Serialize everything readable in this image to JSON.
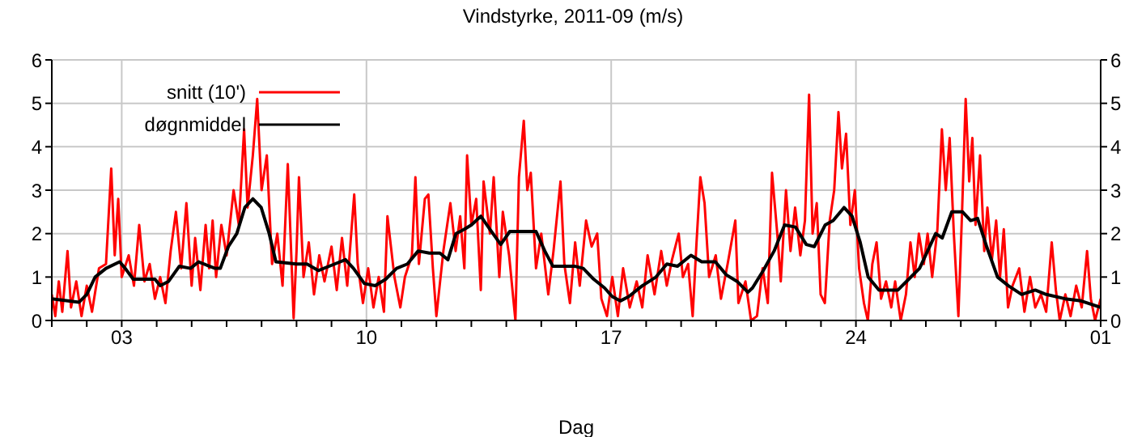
{
  "chart_data": {
    "type": "line",
    "title": "Vindstyrke, 2011-09 (m/s)",
    "xlabel": "Dag",
    "xlim": [
      "2011-09-01",
      "2011-10-01"
    ],
    "xticks": [
      {
        "value": "2011-09-01",
        "label": null
      },
      {
        "value": "2011-09-02",
        "label": null
      },
      {
        "value": "2011-09-03",
        "label": "03"
      },
      {
        "value": "2011-09-04",
        "label": null
      },
      {
        "value": "2011-09-05",
        "label": null
      },
      {
        "value": "2011-09-06",
        "label": null
      },
      {
        "value": "2011-09-07",
        "label": null
      },
      {
        "value": "2011-09-08",
        "label": null
      },
      {
        "value": "2011-09-09",
        "label": null
      },
      {
        "value": "2011-09-10",
        "label": "10"
      },
      {
        "value": "2011-09-11",
        "label": null
      },
      {
        "value": "2011-09-12",
        "label": null
      },
      {
        "value": "2011-09-13",
        "label": null
      },
      {
        "value": "2011-09-14",
        "label": null
      },
      {
        "value": "2011-09-15",
        "label": null
      },
      {
        "value": "2011-09-16",
        "label": null
      },
      {
        "value": "2011-09-17",
        "label": "17"
      },
      {
        "value": "2011-09-18",
        "label": null
      },
      {
        "value": "2011-09-19",
        "label": null
      },
      {
        "value": "2011-09-20",
        "label": null
      },
      {
        "value": "2011-09-21",
        "label": null
      },
      {
        "value": "2011-09-22",
        "label": null
      },
      {
        "value": "2011-09-23",
        "label": null
      },
      {
        "value": "2011-09-24",
        "label": "24"
      },
      {
        "value": "2011-09-25",
        "label": null
      },
      {
        "value": "2011-09-26",
        "label": null
      },
      {
        "value": "2011-09-27",
        "label": null
      },
      {
        "value": "2011-09-28",
        "label": null
      },
      {
        "value": "2011-09-29",
        "label": null
      },
      {
        "value": "2011-09-30",
        "label": null
      },
      {
        "value": "2011-10-01",
        "label": "01"
      }
    ],
    "ylim": [
      0,
      6
    ],
    "yticks": [
      0,
      1,
      2,
      3,
      4,
      5,
      6
    ],
    "y2lim": [
      0,
      6
    ],
    "y2ticks": [
      0,
      1,
      2,
      3,
      4,
      5,
      6
    ],
    "grid": true,
    "legend": "top left",
    "marker": "none",
    "line_style": "solid",
    "series": [
      {
        "name": "snitt (10')",
        "color": "#ff0000",
        "x": [
          "2011-09-01T00:00",
          "2011-09-01T02:24",
          "2011-09-01T04:48",
          "2011-09-01T07:12",
          "2011-09-01T10:48",
          "2011-09-01T13:12",
          "2011-09-01T16:48",
          "2011-09-01T20:24",
          "2011-09-02T00:00",
          "2011-09-02T03:36",
          "2011-09-02T08:24",
          "2011-09-02T13:12",
          "2011-09-02T16:48",
          "2011-09-02T19:12",
          "2011-09-02T21:36",
          "2011-09-03T00:00",
          "2011-09-03T04:48",
          "2011-09-03T08:24",
          "2011-09-03T12:00",
          "2011-09-03T15:36",
          "2011-09-03T19:12",
          "2011-09-03T22:48",
          "2011-09-04T02:24",
          "2011-09-04T06:00",
          "2011-09-04T09:36",
          "2011-09-04T13:12",
          "2011-09-04T16:48",
          "2011-09-04T20:24",
          "2011-09-05T00:00",
          "2011-09-05T02:24",
          "2011-09-05T06:00",
          "2011-09-05T09:36",
          "2011-09-05T12:00",
          "2011-09-05T14:24",
          "2011-09-05T16:48",
          "2011-09-05T20:24",
          "2011-09-06T00:00",
          "2011-09-06T04:48",
          "2011-09-06T08:24",
          "2011-09-06T12:00",
          "2011-09-06T14:24",
          "2011-09-06T18:00",
          "2011-09-06T21:00",
          "2011-09-07T00:00",
          "2011-09-07T03:36",
          "2011-09-07T07:12",
          "2011-09-07T10:48",
          "2011-09-07T14:24",
          "2011-09-07T18:00",
          "2011-09-07T20:24",
          "2011-09-07T22:00",
          "2011-09-08T00:00",
          "2011-09-08T01:40",
          "2011-09-08T04:48",
          "2011-09-08T08:24",
          "2011-09-08T12:00",
          "2011-09-08T15:36",
          "2011-09-08T19:12",
          "2011-09-09T00:00",
          "2011-09-09T03:36",
          "2011-09-09T07:12",
          "2011-09-09T10:48",
          "2011-09-09T15:36",
          "2011-09-09T18:00",
          "2011-09-09T21:36",
          "2011-09-10T01:12",
          "2011-09-10T04:48",
          "2011-09-10T08:24",
          "2011-09-10T12:00",
          "2011-09-10T14:24",
          "2011-09-10T19:12",
          "2011-09-10T23:15",
          "2011-09-11T02:24",
          "2011-09-11T07:12",
          "2011-09-11T09:36",
          "2011-09-11T12:00",
          "2011-09-11T16:05",
          "2011-09-11T18:30",
          "2011-09-11T21:36",
          "2011-09-12T00:00",
          "2011-09-12T04:48",
          "2011-09-12T09:36",
          "2011-09-12T13:12",
          "2011-09-12T16:20",
          "2011-09-12T19:12",
          "2011-09-12T21:05",
          "2011-09-13T00:00",
          "2011-09-13T03:20",
          "2011-09-13T06:30",
          "2011-09-13T08:24",
          "2011-09-13T12:45",
          "2011-09-13T15:20",
          "2011-09-13T19:12",
          "2011-09-13T21:36",
          "2011-09-14T01:55",
          "2011-09-14T06:15",
          "2011-09-14T08:40",
          "2011-09-14T12:00",
          "2011-09-14T14:24",
          "2011-09-14T16:48",
          "2011-09-14T20:24",
          "2011-09-15T00:00",
          "2011-09-15T04:48",
          "2011-09-15T08:24",
          "2011-09-15T13:12",
          "2011-09-15T15:50",
          "2011-09-15T19:40",
          "2011-09-15T23:15",
          "2011-09-16T02:24",
          "2011-09-16T06:45",
          "2011-09-16T10:35",
          "2011-09-16T14:24",
          "2011-09-16T17:15",
          "2011-09-16T21:05",
          "2011-09-17T00:45",
          "2011-09-17T04:35",
          "2011-09-17T08:10",
          "2011-09-17T12:45",
          "2011-09-17T17:30",
          "2011-09-17T21:20",
          "2011-09-18T01:00",
          "2011-09-18T05:45",
          "2011-09-18T10:20",
          "2011-09-18T14:10",
          "2011-09-18T17:45",
          "2011-09-18T22:20",
          "2011-09-19T01:12",
          "2011-09-19T04:48",
          "2011-09-19T07:55",
          "2011-09-19T10:35",
          "2011-09-19T13:12",
          "2011-09-19T16:05",
          "2011-09-19T19:12",
          "2011-09-19T23:45",
          "2011-09-20T03:20",
          "2011-09-20T07:55",
          "2011-09-20T13:12",
          "2011-09-20T15:20",
          "2011-09-20T20:10",
          "2011-09-21T00:00",
          "2011-09-21T04:05",
          "2011-09-21T07:55",
          "2011-09-21T11:30",
          "2011-09-21T14:24",
          "2011-09-21T18:00",
          "2011-09-21T20:24",
          "2011-09-22T00:00",
          "2011-09-22T03:05",
          "2011-09-22T06:15",
          "2011-09-22T09:50",
          "2011-09-22T13:00",
          "2011-09-22T15:50",
          "2011-09-22T18:15",
          "2011-09-22T21:05",
          "2011-09-22T23:45",
          "2011-09-23T02:40",
          "2011-09-23T06:00",
          "2011-09-23T09:05",
          "2011-09-23T12:00",
          "2011-09-23T14:24",
          "2011-09-23T17:15",
          "2011-09-23T20:10",
          "2011-09-23T23:15",
          "2011-09-24T02:10",
          "2011-09-24T05:30",
          "2011-09-24T08:10",
          "2011-09-24T11:15",
          "2011-09-24T14:10",
          "2011-09-24T17:15",
          "2011-09-24T20:40",
          "2011-09-25T00:15",
          "2011-09-25T02:55",
          "2011-09-25T06:45",
          "2011-09-25T10:20",
          "2011-09-25T13:25",
          "2011-09-25T16:20",
          "2011-09-25T19:12",
          "2011-09-25T22:35",
          "2011-09-26T01:12",
          "2011-09-26T04:20",
          "2011-09-26T07:55",
          "2011-09-26T11:00",
          "2011-09-26T13:40",
          "2011-09-26T16:20",
          "2011-09-26T19:12",
          "2011-09-26T22:20",
          "2011-09-27T00:45",
          "2011-09-27T03:20",
          "2011-09-27T05:45",
          "2011-09-27T07:55",
          "2011-09-27T10:05",
          "2011-09-27T13:12",
          "2011-09-27T16:05",
          "2011-09-27T18:15",
          "2011-09-27T21:20",
          "2011-09-28T00:15",
          "2011-09-28T02:55",
          "2011-09-28T05:30",
          "2011-09-28T08:24",
          "2011-09-28T11:30",
          "2011-09-28T16:05",
          "2011-09-28T19:40",
          "2011-09-28T23:30",
          "2011-09-29T03:05",
          "2011-09-29T07:00",
          "2011-09-29T10:35",
          "2011-09-29T14:24",
          "2011-09-29T17:15",
          "2011-09-29T19:55",
          "2011-09-29T23:45",
          "2011-09-30T03:20",
          "2011-09-30T07:12",
          "2011-09-30T11:00",
          "2011-09-30T14:40",
          "2011-09-30T17:15",
          "2011-09-30T20:10",
          "2011-10-01T00:00"
        ],
        "values": [
          0.6,
          0.1,
          0.9,
          0.2,
          1.6,
          0.3,
          0.9,
          0.1,
          0.8,
          0.2,
          1.2,
          1.3,
          3.5,
          1.5,
          2.8,
          1.0,
          1.5,
          0.8,
          2.2,
          0.9,
          1.3,
          0.5,
          1.0,
          0.4,
          1.6,
          2.5,
          1.2,
          2.7,
          0.8,
          1.9,
          0.7,
          2.2,
          1.2,
          2.3,
          1.0,
          2.2,
          1.5,
          3.0,
          2.2,
          4.4,
          2.6,
          3.8,
          5.1,
          3.0,
          3.8,
          1.3,
          2.0,
          0.8,
          3.6,
          1.5,
          0.05,
          1.6,
          3.3,
          1.0,
          1.8,
          0.6,
          1.5,
          0.9,
          1.7,
          0.7,
          1.9,
          0.8,
          2.9,
          1.3,
          0.4,
          1.2,
          0.3,
          1.0,
          0.2,
          2.4,
          1.0,
          0.3,
          1.0,
          1.5,
          3.3,
          1.3,
          2.8,
          2.9,
          1.2,
          0.1,
          1.6,
          2.7,
          1.6,
          2.4,
          1.2,
          3.8,
          2.2,
          2.8,
          0.7,
          3.2,
          2.0,
          3.3,
          1.0,
          2.5,
          1.5,
          0.0,
          3.3,
          4.6,
          3.0,
          3.4,
          1.2,
          2.0,
          0.6,
          1.6,
          3.2,
          1.3,
          0.4,
          1.8,
          0.8,
          2.3,
          1.7,
          2.0,
          0.5,
          0.1,
          1.0,
          0.1,
          1.2,
          0.3,
          0.9,
          0.3,
          1.5,
          0.6,
          1.6,
          0.8,
          1.4,
          2.0,
          1.0,
          1.3,
          0.1,
          1.8,
          3.3,
          2.7,
          1.0,
          1.5,
          0.5,
          1.3,
          2.3,
          0.4,
          0.9,
          0.0,
          0.1,
          1.2,
          0.4,
          3.4,
          2.0,
          0.9,
          3.0,
          1.6,
          2.6,
          1.5,
          2.3,
          5.2,
          2.0,
          2.7,
          0.6,
          0.4,
          2.3,
          3.0,
          4.8,
          3.5,
          4.3,
          2.2,
          3.0,
          1.2,
          0.4,
          0.0,
          1.3,
          1.8,
          0.5,
          0.9,
          0.3,
          0.9,
          0.0,
          0.6,
          1.8,
          1.0,
          2.0,
          1.3,
          2.0,
          1.0,
          2.1,
          4.4,
          3.0,
          4.2,
          2.0,
          0.1,
          2.4,
          5.1,
          3.2,
          4.2,
          2.2,
          3.8,
          1.6,
          2.6,
          1.4,
          2.3,
          1.0,
          2.1,
          0.3,
          0.8,
          1.2,
          0.2,
          1.0,
          0.3,
          0.6,
          0.2,
          1.8,
          0.7,
          0.0,
          0.6,
          0.1,
          0.8,
          0.3,
          1.6,
          0.5,
          0.0,
          0.5
        ]
      },
      {
        "name": "døgnmiddel",
        "color": "#000000",
        "x": [
          "2011-09-01T00:00",
          "2011-09-01T18:45",
          "2011-09-02T00:00",
          "2011-09-02T05:45",
          "2011-09-02T13:12",
          "2011-09-02T22:35",
          "2011-09-03T02:24",
          "2011-09-03T07:55",
          "2011-09-03T22:48",
          "2011-09-04T02:24",
          "2011-09-04T08:10",
          "2011-09-04T15:36",
          "2011-09-04T23:15",
          "2011-09-05T04:48",
          "2011-09-05T08:24",
          "2011-09-05T16:05",
          "2011-09-05T19:40",
          "2011-09-06T01:12",
          "2011-09-06T07:00",
          "2011-09-06T12:30",
          "2011-09-06T18:00",
          "2011-09-06T23:45",
          "2011-09-07T05:15",
          "2011-09-07T09:50",
          "2011-09-08T00:00",
          "2011-09-08T07:12",
          "2011-09-08T14:55",
          "2011-09-09T02:10",
          "2011-09-09T09:36",
          "2011-09-09T15:05",
          "2011-09-09T22:35",
          "2011-09-10T06:00",
          "2011-09-10T13:12",
          "2011-09-10T20:40",
          "2011-09-11T04:05",
          "2011-09-11T11:30",
          "2011-09-11T19:12",
          "2011-09-12T02:24",
          "2011-09-12T07:55",
          "2011-09-12T13:25",
          "2011-09-12T19:12",
          "2011-09-13T00:00",
          "2011-09-13T06:30",
          "2011-09-13T12:45",
          "2011-09-13T20:10",
          "2011-09-14T02:24",
          "2011-09-14T13:12",
          "2011-09-14T20:24",
          "2011-09-15T02:24",
          "2011-09-15T07:55",
          "2011-09-15T22:48",
          "2011-09-16T04:48",
          "2011-09-16T12:00",
          "2011-09-16T19:25",
          "2011-09-17T00:45",
          "2011-09-17T06:15",
          "2011-09-17T12:00",
          "2011-09-17T21:20",
          "2011-09-18T06:45",
          "2011-09-18T14:10",
          "2011-09-18T21:36",
          "2011-09-19T06:45",
          "2011-09-19T14:10",
          "2011-09-19T23:30",
          "2011-09-20T07:00",
          "2011-09-20T14:24",
          "2011-09-20T21:50",
          "2011-09-21T01:00",
          "2011-09-21T08:24",
          "2011-09-21T15:50",
          "2011-09-21T23:00",
          "2011-09-22T06:30",
          "2011-09-22T13:55",
          "2011-09-22T19:25",
          "2011-09-23T02:55",
          "2011-09-23T08:24",
          "2011-09-23T15:50",
          "2011-09-23T21:20",
          "2011-09-24T02:55",
          "2011-09-24T08:24",
          "2011-09-24T15:50",
          "2011-09-25T04:48",
          "2011-09-25T12:15",
          "2011-09-25T19:40",
          "2011-09-26T01:12",
          "2011-09-26T06:45",
          "2011-09-26T11:15",
          "2011-09-26T17:45",
          "2011-09-27T01:12",
          "2011-09-27T06:45",
          "2011-09-27T11:30",
          "2011-09-27T17:45",
          "2011-09-28T01:12",
          "2011-09-28T08:40",
          "2011-09-28T17:45",
          "2011-09-29T03:05",
          "2011-09-29T10:35",
          "2011-09-29T23:30",
          "2011-09-30T10:35",
          "2011-10-01T00:00"
        ],
        "values": [
          0.5,
          0.42,
          0.6,
          1.0,
          1.2,
          1.35,
          1.2,
          0.95,
          0.95,
          0.8,
          0.9,
          1.25,
          1.2,
          1.35,
          1.3,
          1.2,
          1.2,
          1.7,
          2.0,
          2.6,
          2.8,
          2.6,
          2.0,
          1.35,
          1.3,
          1.3,
          1.15,
          1.3,
          1.4,
          1.2,
          0.85,
          0.8,
          0.95,
          1.2,
          1.3,
          1.6,
          1.55,
          1.55,
          1.4,
          2.0,
          2.1,
          2.2,
          2.4,
          2.1,
          1.75,
          2.05,
          2.05,
          2.05,
          1.6,
          1.25,
          1.25,
          1.2,
          0.95,
          0.75,
          0.55,
          0.45,
          0.55,
          0.8,
          1.0,
          1.3,
          1.25,
          1.5,
          1.35,
          1.35,
          1.05,
          0.9,
          0.65,
          0.75,
          1.15,
          1.6,
          2.2,
          2.15,
          1.75,
          1.7,
          2.2,
          2.3,
          2.6,
          2.4,
          1.8,
          1.0,
          0.7,
          0.7,
          0.95,
          1.2,
          1.6,
          2.0,
          1.9,
          2.5,
          2.5,
          2.3,
          2.35,
          1.7,
          1.0,
          0.8,
          0.6,
          0.7,
          0.6,
          0.5,
          0.45,
          0.3
        ]
      }
    ]
  }
}
